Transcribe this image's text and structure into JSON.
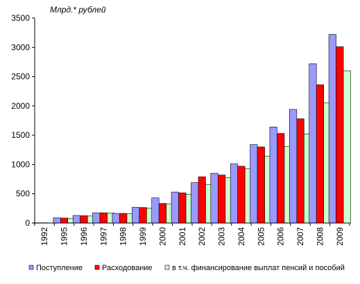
{
  "chart_data": {
    "type": "bar",
    "unit_label": "Млрд.* рублей",
    "categories": [
      "1992",
      "1995",
      "1996",
      "1997",
      "1998",
      "1999",
      "2000",
      "2001",
      "2002",
      "2003",
      "2004",
      "2005",
      "2006",
      "2007",
      "2008",
      "2009"
    ],
    "series": [
      {
        "name": "Поступление",
        "color": "#9999FF",
        "values": [
          5,
          90,
          130,
          175,
          165,
          270,
          430,
          530,
          690,
          850,
          1010,
          1340,
          1640,
          1940,
          2720,
          3220
        ]
      },
      {
        "name": "Расходование",
        "color": "#FF0000",
        "values": [
          4,
          85,
          125,
          175,
          165,
          265,
          335,
          515,
          790,
          820,
          970,
          1300,
          1530,
          1780,
          2360,
          3010
        ]
      },
      {
        "name": "в т.ч. финансирование выплат пенсий и пособий",
        "color": "#CCFFCC",
        "values": [
          3,
          80,
          120,
          170,
          160,
          255,
          325,
          490,
          660,
          775,
          925,
          1140,
          1305,
          1520,
          2050,
          2600
        ]
      }
    ],
    "ylim": [
      0,
      3500
    ],
    "yticks": [
      0,
      500,
      1000,
      1500,
      2000,
      2500,
      3000,
      3500
    ],
    "legend_position": "bottom",
    "grid": false
  }
}
